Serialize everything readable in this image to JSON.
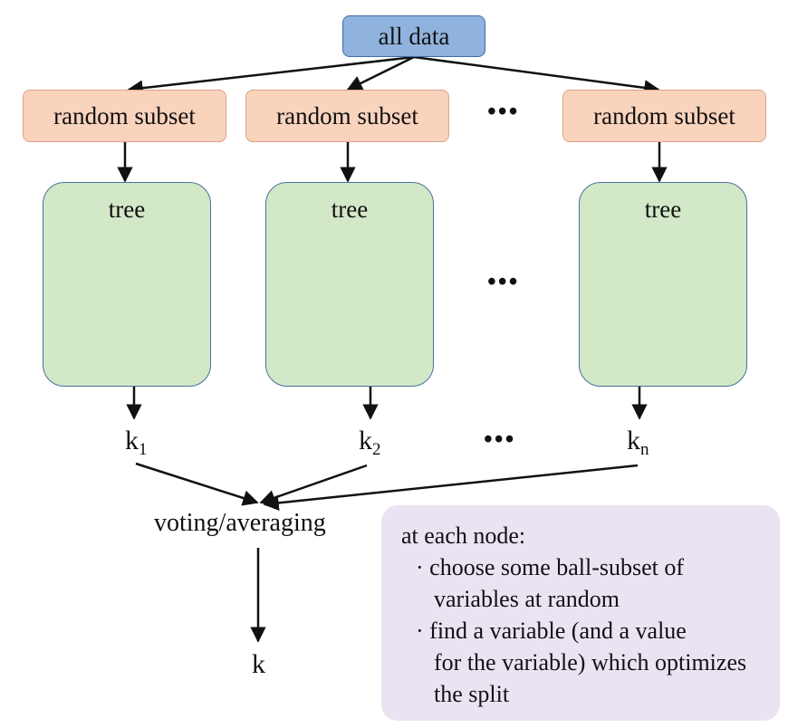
{
  "root_label": "all data",
  "subsets": [
    {
      "label": "random subset"
    },
    {
      "label": "random subset"
    },
    {
      "label": "random subset"
    }
  ],
  "trees": [
    {
      "label": "tree"
    },
    {
      "label": "tree"
    },
    {
      "label": "tree"
    }
  ],
  "ellipsis": "•••",
  "outputs": [
    {
      "base": "k",
      "sub": "1"
    },
    {
      "base": "k",
      "sub": "2"
    },
    {
      "base": "k",
      "sub": "n"
    }
  ],
  "aggregate_label": "voting/averaging",
  "final_output": "k",
  "note": {
    "heading": "at each node:",
    "lines": [
      "· choose some ball-subset of",
      "variables at random",
      "· find a variable (and a value",
      "for the variable) which optimizes",
      "the split"
    ]
  }
}
